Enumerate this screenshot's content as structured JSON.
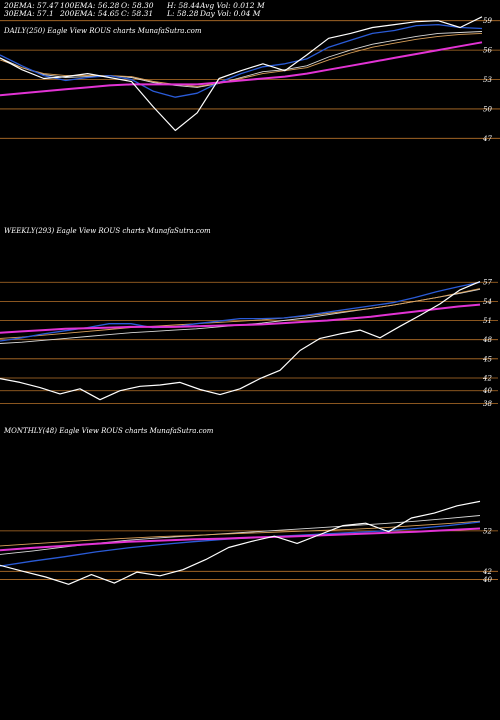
{
  "colors": {
    "background": "#000000",
    "level_line": "#b8732a",
    "price": "#ffffff",
    "ema_fast": "#2a5bd7",
    "ema_slow": "#e233d4",
    "ema_mid": "#d9a05a",
    "ema_gray": "#d8d8d8",
    "text": "#ffffff"
  },
  "header": {
    "stats": [
      [
        "20EMA: 57.47",
        "100EMA: 56.28",
        "O: 58.30",
        "H: 58.44",
        "Avg Vol: 0.012  M"
      ],
      [
        "30EMA: 57.1",
        "200EMA: 54.65",
        "C: 58.31",
        "L: 58.28",
        "Day Vol: 0.04  M"
      ]
    ]
  },
  "chart_data": [
    {
      "type": "line",
      "title": "DAILY(250) Eagle  View ROUS charts MunafaSutra.com",
      "y_ticks": [
        59,
        56,
        53,
        50,
        47
      ],
      "ylim": [
        45.3,
        60.6
      ],
      "n_points": 250,
      "series": [
        {
          "role": "ema_gray",
          "values": [
            55.2,
            54.2,
            53.5,
            53.2,
            53.3,
            53.4,
            53.2,
            52.7,
            52.4,
            52.2,
            52.6,
            53.2,
            53.8,
            54.0,
            54.4,
            55.3,
            56.0,
            56.6,
            57.0,
            57.4,
            57.7,
            57.8,
            57.9
          ]
        },
        {
          "role": "ema_mid",
          "values": [
            55.0,
            54.2,
            53.6,
            53.4,
            53.4,
            53.4,
            53.3,
            52.8,
            52.5,
            52.3,
            52.6,
            53.1,
            53.6,
            53.9,
            54.2,
            55.0,
            55.7,
            56.3,
            56.7,
            57.1,
            57.4,
            57.6,
            57.7
          ]
        },
        {
          "role": "ema_fast",
          "values": [
            55.5,
            54.4,
            53.4,
            52.9,
            53.2,
            53.4,
            53.0,
            51.8,
            51.2,
            51.6,
            52.7,
            53.6,
            54.3,
            54.6,
            55.1,
            56.3,
            57.0,
            57.7,
            58.0,
            58.5,
            58.6,
            58.3,
            58.2
          ]
        },
        {
          "role": "ema_slow",
          "values": [
            51.4,
            51.6,
            51.8,
            52.0,
            52.2,
            52.4,
            52.5,
            52.5,
            52.5,
            52.5,
            52.7,
            52.9,
            53.1,
            53.3,
            53.6,
            54.0,
            54.4,
            54.8,
            55.2,
            55.6,
            56.0,
            56.4,
            56.8
          ]
        },
        {
          "role": "price",
          "values": [
            55.2,
            54.0,
            53.1,
            53.3,
            53.6,
            53.2,
            52.8,
            50.2,
            47.8,
            49.6,
            53.1,
            53.9,
            54.6,
            53.9,
            55.5,
            57.2,
            57.7,
            58.3,
            58.6,
            58.9,
            59.0,
            58.3,
            59.4
          ]
        }
      ]
    },
    {
      "type": "line",
      "title": "WEEKLY(293) Eagle  View ROUS charts MunafaSutra.com",
      "y_ticks": [
        57,
        54,
        51,
        48,
        45,
        42,
        40,
        38
      ],
      "ylim": [
        36.2,
        59.7
      ],
      "n_points": 293,
      "series": [
        {
          "role": "ema_gray",
          "values": [
            47.4,
            47.6,
            47.9,
            48.2,
            48.5,
            48.8,
            49.1,
            49.3,
            49.5,
            49.7,
            50.0,
            50.3,
            50.6,
            51.0,
            51.4,
            51.9,
            52.4,
            52.9,
            53.4,
            54.0,
            54.6,
            55.2,
            55.9
          ]
        },
        {
          "role": "ema_mid",
          "values": [
            48.2,
            48.4,
            48.7,
            49.0,
            49.3,
            49.6,
            49.9,
            50.1,
            50.3,
            50.5,
            50.7,
            50.9,
            51.1,
            51.4,
            51.7,
            52.1,
            52.5,
            52.9,
            53.4,
            54.0,
            54.6,
            55.3,
            56.0
          ]
        },
        {
          "role": "ema_fast",
          "values": [
            47.8,
            48.3,
            48.9,
            49.4,
            49.9,
            50.5,
            50.5,
            49.9,
            50.0,
            50.5,
            50.9,
            51.3,
            51.3,
            51.4,
            51.8,
            52.3,
            52.8,
            53.3,
            53.8,
            54.6,
            55.5,
            56.3,
            57.0
          ]
        },
        {
          "role": "ema_slow",
          "values": [
            49.1,
            49.3,
            49.5,
            49.7,
            49.8,
            49.9,
            50.0,
            50.0,
            50.0,
            50.1,
            50.2,
            50.3,
            50.4,
            50.6,
            50.8,
            51.0,
            51.3,
            51.6,
            52.0,
            52.4,
            52.8,
            53.2,
            53.5
          ]
        },
        {
          "role": "price",
          "values": [
            41.9,
            41.3,
            40.5,
            39.5,
            40.3,
            38.6,
            40.0,
            40.7,
            40.9,
            41.3,
            40.2,
            39.4,
            40.3,
            41.9,
            43.2,
            46.3,
            48.2,
            48.9,
            49.5,
            48.3,
            50.1,
            51.8,
            53.6,
            55.8,
            57.1
          ]
        }
      ]
    },
    {
      "type": "line",
      "title": "MONTHLY(48) Eagle  View ROUS charts MunafaSutra.com",
      "y_ticks": [
        52,
        42,
        40
      ],
      "ylim": [
        31.2,
        68.3
      ],
      "n_points": 48,
      "series": [
        {
          "role": "ema_gray",
          "values": [
            46.2,
            47.0,
            48.0,
            48.9,
            49.7,
            50.3,
            50.8,
            51.3,
            51.8,
            52.3,
            52.8,
            53.3,
            53.8,
            54.4,
            55.1,
            55.8
          ]
        },
        {
          "role": "ema_mid",
          "values": [
            48.3,
            48.8,
            49.3,
            49.8,
            50.2,
            50.6,
            50.9,
            51.2,
            51.5,
            51.8,
            52.1,
            52.4,
            52.8,
            53.3,
            53.8,
            54.4
          ]
        },
        {
          "role": "ema_fast",
          "values": [
            43.3,
            44.5,
            45.6,
            46.8,
            47.8,
            48.6,
            49.3,
            49.9,
            50.4,
            50.8,
            51.2,
            51.6,
            52.0,
            52.6,
            53.3,
            54.2
          ]
        },
        {
          "role": "ema_slow",
          "values": [
            47.2,
            47.8,
            48.3,
            48.8,
            49.3,
            49.6,
            49.9,
            50.1,
            50.4,
            50.6,
            50.9,
            51.2,
            51.5,
            51.8,
            52.2,
            52.6
          ]
        },
        {
          "role": "price",
          "values": [
            43.5,
            42.0,
            40.6,
            38.8,
            41.2,
            39.1,
            41.8,
            40.9,
            42.4,
            44.9,
            47.9,
            49.4,
            50.7,
            48.9,
            51.1,
            53.3,
            53.9,
            51.8,
            55.2,
            56.4,
            58.2,
            59.3
          ]
        }
      ]
    }
  ]
}
